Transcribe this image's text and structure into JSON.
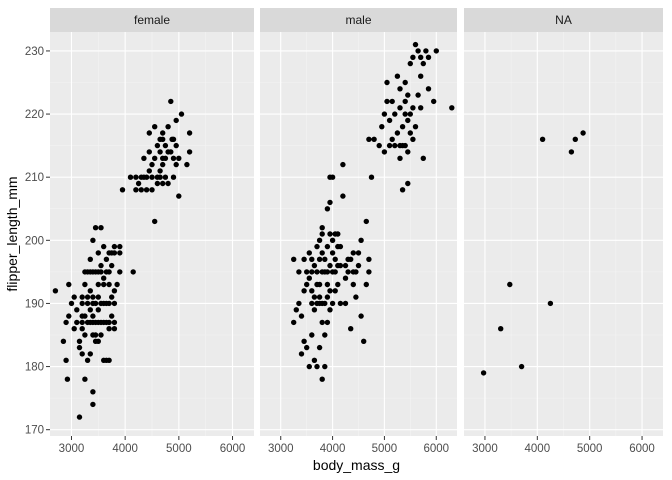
{
  "chart_data": {
    "type": "scatter",
    "facet_by": "sex",
    "xlabel": "body_mass_g",
    "ylabel": "flipper_length_mm",
    "xlim": [
      2600,
      6400
    ],
    "ylim": [
      169,
      233
    ],
    "x_ticks": [
      3000,
      4000,
      5000,
      6000
    ],
    "y_ticks": [
      170,
      180,
      190,
      200,
      210,
      220,
      230
    ],
    "x_tick_labels": [
      "3000",
      "4000",
      "5000",
      "6000"
    ],
    "y_tick_labels": [
      "170",
      "180",
      "190",
      "200",
      "210",
      "220",
      "230"
    ],
    "grid": true,
    "point_color": "#000000",
    "panels": [
      {
        "label": "female",
        "points": [
          [
            2700,
            192
          ],
          [
            2850,
            184
          ],
          [
            2900,
            181
          ],
          [
            2925,
            178
          ],
          [
            2900,
            187
          ],
          [
            2950,
            188
          ],
          [
            2950,
            193
          ],
          [
            3000,
            190
          ],
          [
            3050,
            186
          ],
          [
            3100,
            187
          ],
          [
            3050,
            191
          ],
          [
            3100,
            189
          ],
          [
            3150,
            172
          ],
          [
            3150,
            183
          ],
          [
            3150,
            184
          ],
          [
            3200,
            182
          ],
          [
            3200,
            186
          ],
          [
            3200,
            187
          ],
          [
            3200,
            188
          ],
          [
            3200,
            190
          ],
          [
            3200,
            191
          ],
          [
            3250,
            178
          ],
          [
            3250,
            185
          ],
          [
            3250,
            188
          ],
          [
            3250,
            193
          ],
          [
            3250,
            195
          ],
          [
            3300,
            181
          ],
          [
            3300,
            187
          ],
          [
            3300,
            190
          ],
          [
            3300,
            191
          ],
          [
            3300,
            195
          ],
          [
            3350,
            182
          ],
          [
            3350,
            187
          ],
          [
            3350,
            189
          ],
          [
            3350,
            192
          ],
          [
            3350,
            195
          ],
          [
            3350,
            197
          ],
          [
            3400,
            174
          ],
          [
            3400,
            176
          ],
          [
            3400,
            185
          ],
          [
            3400,
            187
          ],
          [
            3400,
            188
          ],
          [
            3400,
            190
          ],
          [
            3400,
            191
          ],
          [
            3400,
            195
          ],
          [
            3400,
            200
          ],
          [
            3450,
            184
          ],
          [
            3450,
            185
          ],
          [
            3450,
            187
          ],
          [
            3450,
            190
          ],
          [
            3450,
            195
          ],
          [
            3450,
            202
          ],
          [
            3500,
            184
          ],
          [
            3500,
            187
          ],
          [
            3500,
            189
          ],
          [
            3500,
            191
          ],
          [
            3500,
            193
          ],
          [
            3500,
            195
          ],
          [
            3500,
            198
          ],
          [
            3550,
            185
          ],
          [
            3550,
            187
          ],
          [
            3550,
            190
          ],
          [
            3550,
            195
          ],
          [
            3550,
            196
          ],
          [
            3550,
            202
          ],
          [
            3600,
            181
          ],
          [
            3600,
            187
          ],
          [
            3600,
            190
          ],
          [
            3600,
            193
          ],
          [
            3600,
            194
          ],
          [
            3600,
            199
          ],
          [
            3650,
            181
          ],
          [
            3650,
            187
          ],
          [
            3650,
            190
          ],
          [
            3650,
            195
          ],
          [
            3650,
            197
          ],
          [
            3700,
            181
          ],
          [
            3700,
            186
          ],
          [
            3700,
            187
          ],
          [
            3700,
            190
          ],
          [
            3700,
            193
          ],
          [
            3700,
            195
          ],
          [
            3700,
            198
          ],
          [
            3750,
            188
          ],
          [
            3750,
            191
          ],
          [
            3750,
            196
          ],
          [
            3750,
            198
          ],
          [
            3800,
            186
          ],
          [
            3800,
            187
          ],
          [
            3800,
            190
          ],
          [
            3800,
            192
          ],
          [
            3800,
            198
          ],
          [
            3800,
            199
          ],
          [
            3850,
            193
          ],
          [
            3900,
            195
          ],
          [
            3900,
            198
          ],
          [
            3900,
            199
          ],
          [
            3950,
            208
          ],
          [
            4150,
            195
          ],
          [
            4100,
            210
          ],
          [
            4200,
            208
          ],
          [
            4200,
            210
          ],
          [
            4250,
            209
          ],
          [
            4300,
            208
          ],
          [
            4300,
            210
          ],
          [
            4350,
            210
          ],
          [
            4350,
            213
          ],
          [
            4400,
            208
          ],
          [
            4400,
            210
          ],
          [
            4450,
            211
          ],
          [
            4450,
            214
          ],
          [
            4450,
            217
          ],
          [
            4500,
            208
          ],
          [
            4500,
            210
          ],
          [
            4500,
            212
          ],
          [
            4550,
            213
          ],
          [
            4550,
            203
          ],
          [
            4550,
            218
          ],
          [
            4600,
            209
          ],
          [
            4600,
            210
          ],
          [
            4600,
            215
          ],
          [
            4650,
            210
          ],
          [
            4650,
            211
          ],
          [
            4650,
            214
          ],
          [
            4650,
            216
          ],
          [
            4700,
            209
          ],
          [
            4700,
            212
          ],
          [
            4700,
            213
          ],
          [
            4700,
            216
          ],
          [
            4700,
            217
          ],
          [
            4750,
            210
          ],
          [
            4750,
            213
          ],
          [
            4750,
            215
          ],
          [
            4800,
            209
          ],
          [
            4800,
            214
          ],
          [
            4800,
            218
          ],
          [
            4850,
            214
          ],
          [
            4850,
            222
          ],
          [
            4875,
            216
          ],
          [
            4900,
            210
          ],
          [
            4900,
            213
          ],
          [
            4900,
            216
          ],
          [
            4950,
            212
          ],
          [
            4950,
            215
          ],
          [
            4950,
            219
          ],
          [
            5000,
            207
          ],
          [
            5000,
            213
          ],
          [
            5050,
            220
          ],
          [
            5150,
            212
          ],
          [
            5200,
            217
          ],
          [
            5200,
            214
          ]
        ]
      },
      {
        "label": "male",
        "points": [
          [
            3250,
            187
          ],
          [
            3250,
            197
          ],
          [
            3300,
            189
          ],
          [
            3350,
            190
          ],
          [
            3350,
            195
          ],
          [
            3400,
            182
          ],
          [
            3400,
            188
          ],
          [
            3450,
            184
          ],
          [
            3450,
            192
          ],
          [
            3450,
            197
          ],
          [
            3500,
            183
          ],
          [
            3500,
            193
          ],
          [
            3500,
            195
          ],
          [
            3550,
            180
          ],
          [
            3550,
            194
          ],
          [
            3550,
            198
          ],
          [
            3600,
            185
          ],
          [
            3600,
            190
          ],
          [
            3600,
            192
          ],
          [
            3600,
            195
          ],
          [
            3600,
            197
          ],
          [
            3650,
            181
          ],
          [
            3650,
            189
          ],
          [
            3650,
            191
          ],
          [
            3650,
            196
          ],
          [
            3700,
            180
          ],
          [
            3700,
            190
          ],
          [
            3700,
            193
          ],
          [
            3700,
            195
          ],
          [
            3700,
            199
          ],
          [
            3750,
            183
          ],
          [
            3750,
            190
          ],
          [
            3750,
            191
          ],
          [
            3750,
            193
          ],
          [
            3750,
            197
          ],
          [
            3750,
            200
          ],
          [
            3800,
            178
          ],
          [
            3800,
            187
          ],
          [
            3800,
            190
          ],
          [
            3800,
            195
          ],
          [
            3800,
            198
          ],
          [
            3800,
            201
          ],
          [
            3800,
            202
          ],
          [
            3850,
            180
          ],
          [
            3850,
            185
          ],
          [
            3850,
            190
          ],
          [
            3850,
            195
          ],
          [
            3850,
            197
          ],
          [
            3900,
            187
          ],
          [
            3900,
            191
          ],
          [
            3900,
            193
          ],
          [
            3900,
            195
          ],
          [
            3900,
            199
          ],
          [
            3900,
            205
          ],
          [
            3950,
            189
          ],
          [
            3950,
            192
          ],
          [
            3950,
            196
          ],
          [
            3950,
            201
          ],
          [
            3950,
            206
          ],
          [
            3950,
            210
          ],
          [
            4000,
            190
          ],
          [
            4000,
            195
          ],
          [
            4000,
            198
          ],
          [
            4000,
            200
          ],
          [
            4000,
            210
          ],
          [
            4050,
            192
          ],
          [
            4050,
            195
          ],
          [
            4050,
            197
          ],
          [
            4050,
            201
          ],
          [
            4100,
            193
          ],
          [
            4100,
            196
          ],
          [
            4100,
            199
          ],
          [
            4100,
            201
          ],
          [
            4150,
            190
          ],
          [
            4150,
            196
          ],
          [
            4150,
            199
          ],
          [
            4200,
            207
          ],
          [
            4200,
            212
          ],
          [
            4250,
            190
          ],
          [
            4250,
            194
          ],
          [
            4250,
            196
          ],
          [
            4300,
            195
          ],
          [
            4300,
            197
          ],
          [
            4350,
            186
          ],
          [
            4350,
            197
          ],
          [
            4400,
            193
          ],
          [
            4400,
            195
          ],
          [
            4400,
            198
          ],
          [
            4450,
            191
          ],
          [
            4450,
            195
          ],
          [
            4500,
            196
          ],
          [
            4500,
            198
          ],
          [
            4550,
            188
          ],
          [
            4550,
            200
          ],
          [
            4600,
            184
          ],
          [
            4650,
            193
          ],
          [
            4650,
            203
          ],
          [
            4700,
            195
          ],
          [
            4700,
            197
          ],
          [
            4750,
            210
          ],
          [
            4700,
            216
          ],
          [
            4800,
            216
          ],
          [
            4900,
            215
          ],
          [
            4950,
            218
          ],
          [
            5000,
            214
          ],
          [
            5000,
            220
          ],
          [
            5050,
            222
          ],
          [
            5050,
            225
          ],
          [
            5100,
            215
          ],
          [
            5100,
            219
          ],
          [
            5150,
            216
          ],
          [
            5150,
            222
          ],
          [
            5200,
            215
          ],
          [
            5200,
            220
          ],
          [
            5250,
            226
          ],
          [
            5250,
            217
          ],
          [
            5300,
            213
          ],
          [
            5300,
            215
          ],
          [
            5300,
            221
          ],
          [
            5300,
            224
          ],
          [
            5350,
            208
          ],
          [
            5350,
            215
          ],
          [
            5350,
            218
          ],
          [
            5400,
            215
          ],
          [
            5400,
            220
          ],
          [
            5400,
            222
          ],
          [
            5400,
            225
          ],
          [
            5450,
            209
          ],
          [
            5450,
            214
          ],
          [
            5450,
            219
          ],
          [
            5450,
            223
          ],
          [
            5500,
            220
          ],
          [
            5500,
            217
          ],
          [
            5500,
            228
          ],
          [
            5550,
            229
          ],
          [
            5550,
            216
          ],
          [
            5550,
            221
          ],
          [
            5600,
            231
          ],
          [
            5600,
            218
          ],
          [
            5650,
            223
          ],
          [
            5650,
            230
          ],
          [
            5700,
            221
          ],
          [
            5700,
            226
          ],
          [
            5700,
            229
          ],
          [
            5750,
            213
          ],
          [
            5750,
            228
          ],
          [
            5800,
            230
          ],
          [
            5850,
            224
          ],
          [
            5850,
            229
          ],
          [
            5950,
            222
          ],
          [
            6000,
            230
          ],
          [
            6300,
            221
          ]
        ]
      },
      {
        "label": "NA",
        "points": [
          [
            2975,
            179
          ],
          [
            3300,
            186
          ],
          [
            3475,
            193
          ],
          [
            3700,
            180
          ],
          [
            4100,
            216
          ],
          [
            4250,
            190
          ],
          [
            4650,
            214
          ],
          [
            4725,
            216
          ],
          [
            4875,
            217
          ]
        ]
      }
    ]
  }
}
